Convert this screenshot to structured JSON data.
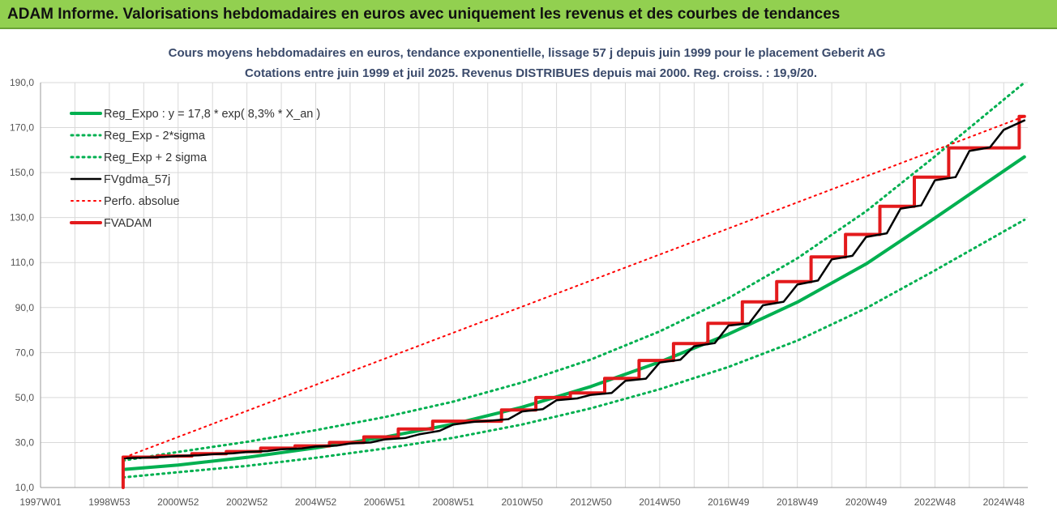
{
  "banner_title": "ADAM Informe. Valorisations hebdomadaires en euros avec uniquement les revenus et des courbes de tendances",
  "chart_data": {
    "type": "line",
    "title": "Cours moyens hebdomadaires en euros, tendance exponentielle, lissage 57 j depuis juin 1999 pour le placement Geberit AG",
    "subtitle": "Cotations entre juin 1999 et juil 2025. Revenus DISTRIBUES depuis mai 2000. Reg. croiss. : 19,9/20.",
    "xlabel": "",
    "ylabel": "",
    "ylim": [
      10,
      190
    ],
    "y_ticks": [
      "10,0",
      "30,0",
      "50,0",
      "70,0",
      "90,0",
      "110,0",
      "130,0",
      "150,0",
      "170,0",
      "190,0"
    ],
    "x_range_years": [
      1997.0,
      2025.7
    ],
    "x_ticks": [
      {
        "label": "1997W01",
        "year": 1997.0
      },
      {
        "label": "1998W53",
        "year": 1999.0
      },
      {
        "label": "2000W52",
        "year": 2001.0
      },
      {
        "label": "2002W52",
        "year": 2003.0
      },
      {
        "label": "2004W52",
        "year": 2005.0
      },
      {
        "label": "2006W51",
        "year": 2007.0
      },
      {
        "label": "2008W51",
        "year": 2009.0
      },
      {
        "label": "2010W50",
        "year": 2011.0
      },
      {
        "label": "2012W50",
        "year": 2013.0
      },
      {
        "label": "2014W50",
        "year": 2015.0
      },
      {
        "label": "2016W49",
        "year": 2017.0
      },
      {
        "label": "2018W49",
        "year": 2019.0
      },
      {
        "label": "2020W49",
        "year": 2021.0
      },
      {
        "label": "2022W48",
        "year": 2023.0
      },
      {
        "label": "2024W48",
        "year": 2025.0
      }
    ],
    "grid": true,
    "legend_position": "top-left",
    "series": [
      {
        "name": "Reg_Expo : y = 17,8 * exp( 8,3% *  X_an )",
        "style": "solid",
        "color": "#00b050",
        "x": [
          1999.4,
          2001,
          2003,
          2005,
          2007,
          2009,
          2011,
          2013,
          2015,
          2017,
          2019,
          2021,
          2023,
          2025.6
        ],
        "values": [
          18.0,
          20.0,
          23.4,
          27.6,
          32.4,
          38.2,
          45.7,
          54.9,
          65.8,
          78.2,
          92.4,
          109.4,
          129.8,
          157.0
        ]
      },
      {
        "name": "Reg_Exp - 2*sigma",
        "style": "dotted",
        "color": "#00b050",
        "x": [
          1999.4,
          2001,
          2003,
          2005,
          2007,
          2009,
          2011,
          2013,
          2015,
          2017,
          2019,
          2021,
          2023,
          2025.6
        ],
        "values": [
          14.5,
          16.8,
          19.6,
          23.2,
          27.3,
          32.1,
          38.0,
          45.2,
          53.7,
          63.6,
          75.3,
          89.7,
          106.5,
          129.0
        ]
      },
      {
        "name": "Reg_Exp + 2 sigma",
        "style": "dotted",
        "color": "#00b050",
        "x": [
          1999.4,
          2001,
          2003,
          2005,
          2007,
          2009,
          2011,
          2013,
          2015,
          2017,
          2019,
          2021,
          2023,
          2025.6
        ],
        "values": [
          22.0,
          25.8,
          30.3,
          35.5,
          41.3,
          48.2,
          56.7,
          66.9,
          79.4,
          94.2,
          111.9,
          132.8,
          157.2,
          190.0
        ]
      },
      {
        "name": "FVgdma_57j",
        "style": "solid",
        "color": "#000000",
        "x": [
          1999.45,
          2000.0,
          2000.6,
          2001.0,
          2001.6,
          2002.0,
          2002.6,
          2003.0,
          2003.6,
          2004.0,
          2004.6,
          2005.0,
          2005.6,
          2006.0,
          2006.6,
          2007.0,
          2007.6,
          2008.0,
          2008.6,
          2009.0,
          2009.6,
          2010.0,
          2010.6,
          2011.0,
          2011.6,
          2012.0,
          2012.6,
          2013.0,
          2013.6,
          2014.0,
          2014.6,
          2015.0,
          2015.6,
          2016.0,
          2016.6,
          2017.0,
          2017.6,
          2018.0,
          2018.6,
          2019.0,
          2019.6,
          2020.0,
          2020.6,
          2021.0,
          2021.6,
          2022.0,
          2022.6,
          2023.0,
          2023.6,
          2024.0,
          2024.6,
          2025.0,
          2025.6
        ],
        "values": [
          23.0,
          23.3,
          23.6,
          24.0,
          24.3,
          24.8,
          25.2,
          25.8,
          26.2,
          27.0,
          27.4,
          28.2,
          28.6,
          29.6,
          30.0,
          31.4,
          32.0,
          33.6,
          35.2,
          38.0,
          39.2,
          39.6,
          40.4,
          43.8,
          44.8,
          48.8,
          49.6,
          51.2,
          52.0,
          57.4,
          58.4,
          65.6,
          66.8,
          72.8,
          74.2,
          82.0,
          83.0,
          91.0,
          92.6,
          100.2,
          102.0,
          111.4,
          113.0,
          121.4,
          123.0,
          134.0,
          135.4,
          146.6,
          148.0,
          159.6,
          161.2,
          169.0,
          173.2
        ]
      },
      {
        "name": "Perfo. absolue",
        "style": "dotted",
        "color": "#ff0000",
        "x": [
          1999.45,
          2025.6
        ],
        "values": [
          23.5,
          175.0
        ]
      },
      {
        "name": "FVADAM",
        "style": "solid",
        "color": "#e31a1c",
        "x": [
          1999.4,
          1999.4,
          2000.4,
          2000.4,
          2001.4,
          2001.4,
          2002.4,
          2002.4,
          2003.4,
          2003.4,
          2004.4,
          2004.4,
          2005.4,
          2005.4,
          2006.4,
          2006.4,
          2007.4,
          2007.4,
          2008.4,
          2008.4,
          2009.4,
          2009.4,
          2010.4,
          2010.4,
          2011.4,
          2011.4,
          2012.4,
          2012.4,
          2013.4,
          2013.4,
          2014.4,
          2014.4,
          2015.4,
          2015.4,
          2016.4,
          2016.4,
          2017.4,
          2017.4,
          2018.4,
          2018.4,
          2019.4,
          2019.4,
          2020.4,
          2020.4,
          2021.4,
          2021.4,
          2022.4,
          2022.4,
          2023.4,
          2023.4,
          2024.4,
          2024.4,
          2025.45,
          2025.45,
          2025.6
        ],
        "values": [
          10.0,
          23.5,
          23.5,
          24.0,
          24.0,
          25.0,
          25.0,
          26.0,
          26.0,
          27.5,
          27.5,
          28.5,
          28.5,
          30.0,
          30.0,
          32.5,
          32.5,
          36.0,
          36.0,
          39.5,
          39.5,
          39.5,
          39.5,
          44.5,
          44.5,
          50.0,
          50.0,
          52.0,
          52.0,
          58.5,
          58.5,
          66.5,
          66.5,
          74.0,
          74.0,
          83.0,
          83.0,
          92.5,
          92.5,
          101.5,
          101.5,
          112.5,
          112.5,
          122.5,
          122.5,
          135.0,
          135.0,
          148.0,
          148.0,
          161.0,
          161.0,
          161.0,
          161.0,
          175.0,
          175.0
        ]
      }
    ]
  }
}
